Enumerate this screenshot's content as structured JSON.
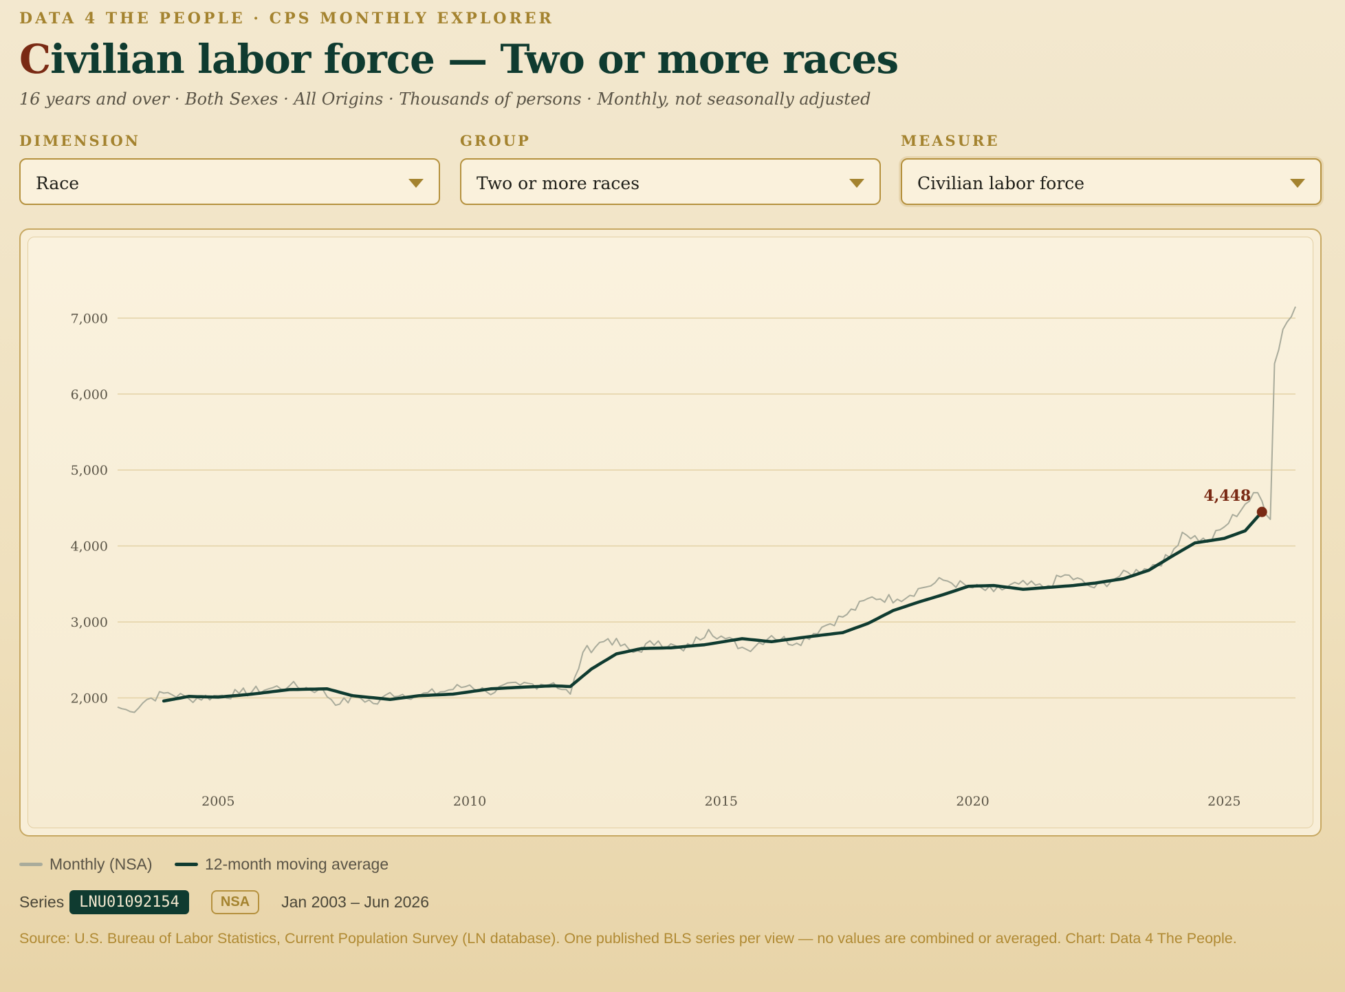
{
  "header": {
    "kicker": "DATA 4 THE PEOPLE · CPS MONTHLY EXPLORER",
    "title_first": "C",
    "title_rest": "ivilian labor force — Two or more races",
    "subtitle": "16 years and over · Both Sexes · All Origins · Thousands of persons · Monthly, not seasonally adjusted"
  },
  "controls": {
    "dimension": {
      "label": "DIMENSION",
      "value": "Race"
    },
    "group": {
      "label": "GROUP",
      "value": "Two or more races"
    },
    "measure": {
      "label": "MEASURE",
      "value": "Civilian labor force"
    }
  },
  "colors": {
    "monthly": "#a9ab9b",
    "moving_average": "#0f3b30",
    "highlight": "#7a2a14",
    "grid": "#e3d2a6"
  },
  "chart_data": {
    "type": "line",
    "title": "",
    "xlabel": "",
    "ylabel": "",
    "x_ticks": [
      "2005",
      "2010",
      "2015",
      "2020",
      "2025"
    ],
    "y_ticks": [
      "2,000",
      "3,000",
      "4,000",
      "5,000",
      "6,000",
      "7,000"
    ],
    "ylim": [
      1000,
      7700
    ],
    "xlim": [
      "2003-01",
      "2026-06"
    ],
    "grid": "horizontal",
    "legend_position": "bottom-left",
    "annotation": {
      "label": "4,448",
      "date": "2025-10",
      "value": 4448
    },
    "series": [
      {
        "name": "Monthly (NSA)",
        "anchors": [
          [
            "2003-01",
            1880
          ],
          [
            "2003-04",
            1820
          ],
          [
            "2003-08",
            1980
          ],
          [
            "2004-01",
            2070
          ],
          [
            "2004-06",
            1990
          ],
          [
            "2005-01",
            2030
          ],
          [
            "2005-06",
            2060
          ],
          [
            "2006-01",
            2120
          ],
          [
            "2006-06",
            2160
          ],
          [
            "2007-01",
            2110
          ],
          [
            "2007-06",
            1920
          ],
          [
            "2007-10",
            2020
          ],
          [
            "2008-03",
            1920
          ],
          [
            "2008-06",
            2070
          ],
          [
            "2009-01",
            2030
          ],
          [
            "2009-06",
            2080
          ],
          [
            "2010-01",
            2170
          ],
          [
            "2010-05",
            2080
          ],
          [
            "2011-01",
            2170
          ],
          [
            "2011-06",
            2180
          ],
          [
            "2011-09",
            2200
          ],
          [
            "2012-01",
            2050
          ],
          [
            "2012-04",
            2600
          ],
          [
            "2012-10",
            2780
          ],
          [
            "2013-04",
            2600
          ],
          [
            "2013-10",
            2750
          ],
          [
            "2014-04",
            2620
          ],
          [
            "2014-10",
            2900
          ],
          [
            "2015-02",
            2780
          ],
          [
            "2015-07",
            2640
          ],
          [
            "2016-01",
            2820
          ],
          [
            "2016-07",
            2720
          ],
          [
            "2017-01",
            2930
          ],
          [
            "2017-07",
            3100
          ],
          [
            "2018-01",
            3330
          ],
          [
            "2018-07",
            3300
          ],
          [
            "2019-01",
            3450
          ],
          [
            "2019-06",
            3550
          ],
          [
            "2019-12",
            3460
          ],
          [
            "2020-06",
            3400
          ],
          [
            "2020-12",
            3500
          ],
          [
            "2021-06",
            3450
          ],
          [
            "2021-11",
            3620
          ],
          [
            "2022-06",
            3450
          ],
          [
            "2022-12",
            3600
          ],
          [
            "2023-06",
            3700
          ],
          [
            "2023-12",
            3850
          ],
          [
            "2024-03",
            4180
          ],
          [
            "2024-09",
            4050
          ],
          [
            "2025-01",
            4250
          ],
          [
            "2025-06",
            4550
          ],
          [
            "2025-09",
            4700
          ],
          [
            "2025-12",
            4350
          ],
          [
            "2026-01",
            6400
          ],
          [
            "2026-03",
            6850
          ],
          [
            "2026-06",
            7150
          ]
        ]
      },
      {
        "name": "12-month moving average",
        "anchors": [
          [
            "2003-12",
            1960
          ],
          [
            "2004-06",
            2020
          ],
          [
            "2005-01",
            2010
          ],
          [
            "2005-09",
            2050
          ],
          [
            "2006-06",
            2110
          ],
          [
            "2007-03",
            2120
          ],
          [
            "2007-09",
            2030
          ],
          [
            "2008-06",
            1980
          ],
          [
            "2009-01",
            2030
          ],
          [
            "2009-09",
            2050
          ],
          [
            "2010-06",
            2120
          ],
          [
            "2011-01",
            2140
          ],
          [
            "2011-09",
            2160
          ],
          [
            "2012-01",
            2150
          ],
          [
            "2012-06",
            2380
          ],
          [
            "2012-12",
            2580
          ],
          [
            "2013-06",
            2650
          ],
          [
            "2014-01",
            2660
          ],
          [
            "2014-09",
            2700
          ],
          [
            "2015-06",
            2780
          ],
          [
            "2016-01",
            2740
          ],
          [
            "2016-09",
            2800
          ],
          [
            "2017-06",
            2860
          ],
          [
            "2017-12",
            2980
          ],
          [
            "2018-06",
            3150
          ],
          [
            "2018-12",
            3260
          ],
          [
            "2019-06",
            3360
          ],
          [
            "2019-12",
            3470
          ],
          [
            "2020-06",
            3480
          ],
          [
            "2021-01",
            3430
          ],
          [
            "2021-06",
            3450
          ],
          [
            "2022-01",
            3480
          ],
          [
            "2022-06",
            3510
          ],
          [
            "2023-01",
            3570
          ],
          [
            "2023-07",
            3680
          ],
          [
            "2024-01",
            3880
          ],
          [
            "2024-06",
            4040
          ],
          [
            "2025-01",
            4100
          ],
          [
            "2025-06",
            4200
          ],
          [
            "2025-10",
            4448
          ]
        ]
      }
    ]
  },
  "legend": {
    "monthly_label": "Monthly (NSA)",
    "ma_label": "12-month moving average"
  },
  "meta": {
    "series_label": "Series",
    "series_id": "LNU01092154",
    "badge": "NSA",
    "range": "Jan 2003 – Jun 2026"
  },
  "source": "Source: U.S. Bureau of Labor Statistics, Current Population Survey (LN database). One published BLS series per view — no values are combined or averaged. Chart: Data 4 The People."
}
